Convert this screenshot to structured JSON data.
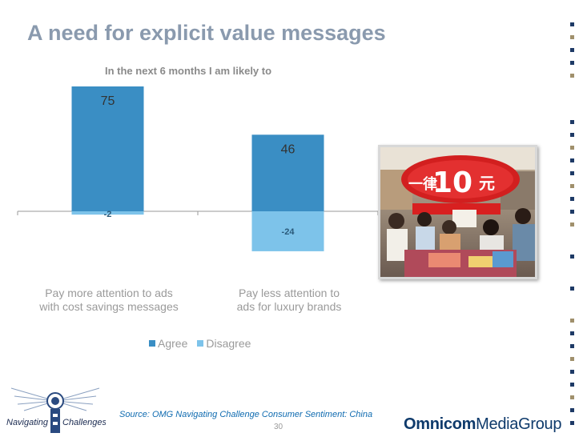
{
  "title": "A need for explicit value messages",
  "colors": {
    "agree": "#3a8ec4",
    "disagree": "#7dc3ea",
    "title": "#8a9aae",
    "brand": "#0e3a6b"
  },
  "chart_data": {
    "type": "bar",
    "title": "In the next 6 months I am likely to",
    "categories": [
      [
        "Pay more attention to ads",
        "with cost savings messages"
      ],
      [
        "Pay less attention to",
        "ads for luxury brands"
      ]
    ],
    "series": [
      {
        "name": "Agree",
        "values": [
          75,
          46
        ],
        "labels": [
          "75",
          "46"
        ]
      },
      {
        "name": "Disagree",
        "values": [
          -2,
          -24
        ],
        "labels": [
          "-2",
          "-24"
        ]
      }
    ],
    "stacked": true,
    "legend_position": "bottom",
    "grid": false
  },
  "image": {
    "alt": "shoppers at a store with a large red 10 yuan price sign",
    "sign_text": "一律10元"
  },
  "logo": {
    "left_text": "Navigating",
    "right_text": "Challenges"
  },
  "footer": {
    "source": "Source: OMG Navigating Challenge Consumer Sentiment: China",
    "page_number": "30",
    "brand_bold": "Omnicom",
    "brand_regular": "MediaGroup"
  }
}
